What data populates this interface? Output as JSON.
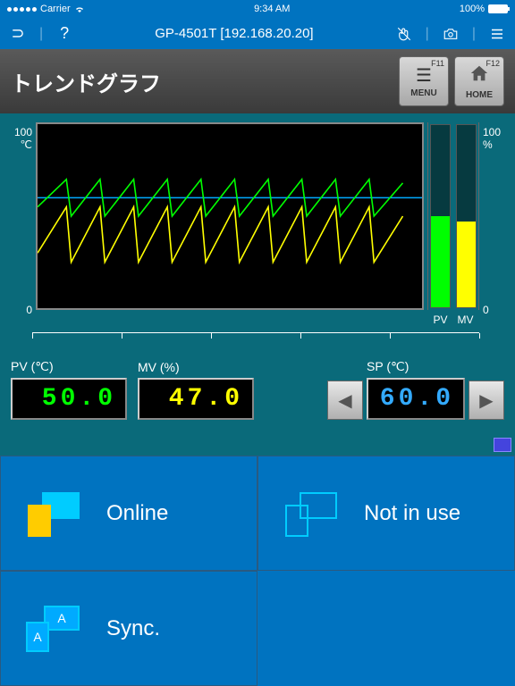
{
  "status_bar": {
    "carrier": "Carrier",
    "time": "9:34 AM",
    "battery_pct": "100%"
  },
  "app_bar": {
    "title": "GP-4501T [192.168.20.20]"
  },
  "hmi": {
    "title": "トレンドグラフ",
    "menu_btn": {
      "fkey": "F11",
      "label": "MENU"
    },
    "home_btn": {
      "fkey": "F12",
      "label": "HOME"
    }
  },
  "trend": {
    "y_left_top": "100",
    "y_left_unit": "℃",
    "y_left_bottom": "0",
    "y_right_top": "100",
    "y_right_unit": "%",
    "y_right_bottom": "0",
    "series": {
      "pv": {
        "color": "#00ff00",
        "points": [
          [
            0,
            55
          ],
          [
            30,
            70
          ],
          [
            35,
            50
          ],
          [
            65,
            70
          ],
          [
            70,
            50
          ],
          [
            100,
            70
          ],
          [
            105,
            50
          ],
          [
            135,
            70
          ],
          [
            140,
            50
          ],
          [
            170,
            70
          ],
          [
            175,
            50
          ],
          [
            205,
            70
          ],
          [
            210,
            50
          ],
          [
            240,
            70
          ],
          [
            245,
            50
          ],
          [
            275,
            70
          ],
          [
            280,
            50
          ],
          [
            310,
            70
          ],
          [
            315,
            50
          ],
          [
            345,
            70
          ],
          [
            350,
            50
          ],
          [
            380,
            68
          ]
        ]
      },
      "sp": {
        "color": "#00aaff",
        "points": [
          [
            0,
            60
          ],
          [
            400,
            60
          ]
        ]
      },
      "mv": {
        "color": "#ffff00",
        "points": [
          [
            0,
            30
          ],
          [
            30,
            55
          ],
          [
            35,
            25
          ],
          [
            65,
            55
          ],
          [
            70,
            25
          ],
          [
            100,
            55
          ],
          [
            105,
            25
          ],
          [
            135,
            55
          ],
          [
            140,
            25
          ],
          [
            170,
            55
          ],
          [
            175,
            25
          ],
          [
            205,
            55
          ],
          [
            210,
            25
          ],
          [
            240,
            55
          ],
          [
            245,
            25
          ],
          [
            275,
            55
          ],
          [
            280,
            25
          ],
          [
            310,
            55
          ],
          [
            315,
            25
          ],
          [
            345,
            55
          ],
          [
            350,
            25
          ],
          [
            380,
            50
          ]
        ]
      }
    },
    "bars": {
      "pv_pct": 50,
      "mv_pct": 47,
      "pv_color": "#00ff00",
      "mv_color": "#ffff00"
    },
    "bar_label_pv": "PV",
    "bar_label_mv": "MV"
  },
  "readouts": {
    "pv": {
      "label": "PV (℃)",
      "value": "50.0"
    },
    "mv": {
      "label": "MV (%)",
      "value": "47.0"
    },
    "sp": {
      "label": "SP (℃)",
      "value": "60.0"
    }
  },
  "status_cells": {
    "online": "Online",
    "not_in_use": "Not in use",
    "sync": "Sync."
  }
}
